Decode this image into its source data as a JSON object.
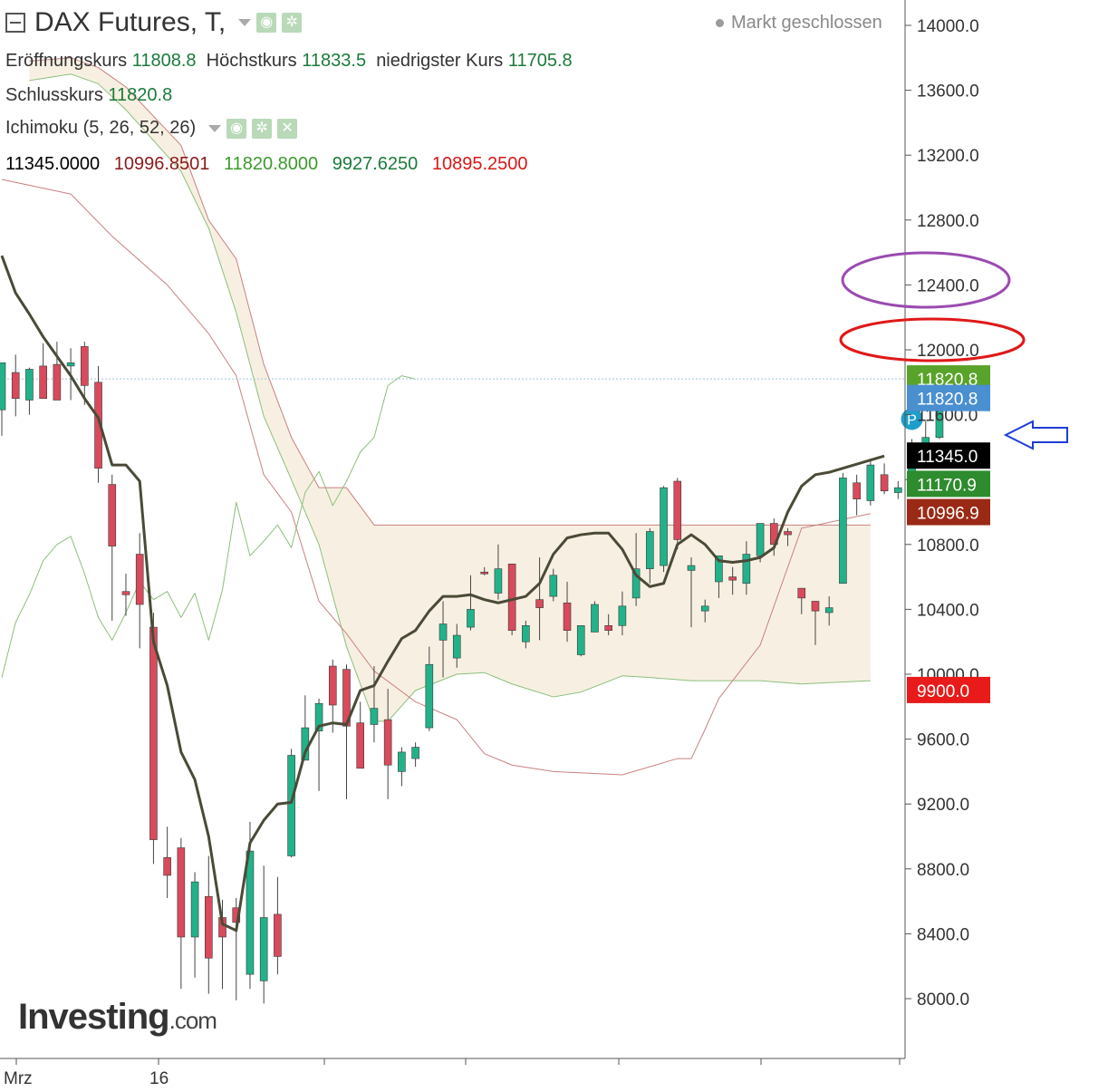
{
  "header": {
    "title": "DAX Futures, T,",
    "ohl": {
      "open_label": "Eröffnungskurs",
      "open": "11808.8",
      "high_label": "Höchstkurs",
      "high": "11833.5",
      "low_label": "niedrigster Kurs",
      "low": "11705.8"
    },
    "close_label": "Schlusskurs",
    "close": "11820.8",
    "indicator": "Ichimoku (5, 26, 52, 26)",
    "indicator_values": [
      "11345.0000",
      "10996.8501",
      "11820.8000",
      "9927.6250",
      "10895.2500"
    ],
    "indicator_colors": [
      "#000000",
      "#8b1a1a",
      "#3c9a2c",
      "#1b7b3a",
      "#d81818"
    ]
  },
  "status": "Markt geschlossen",
  "logo": {
    "main": "Investing",
    "suffix": ".com"
  },
  "chart_data": {
    "type": "candlestick",
    "x_labels": [
      "Mrz",
      "16"
    ],
    "y_ticks": [
      14000,
      13600,
      13200,
      12800,
      12400,
      12000,
      11600,
      11200,
      10800,
      10400,
      10000,
      9600,
      9200,
      8800,
      8400,
      8000
    ],
    "y_tick_labels": [
      "14000.0",
      "13600.0",
      "13200.0",
      "12800.0",
      "12400.0",
      "12000.0",
      "11600.0",
      "11200.0",
      "10800.0",
      "10400.0",
      "10000.0",
      "9600.0",
      "9200.0",
      "8800.0",
      "8400.0",
      "8000.0"
    ],
    "ylim": [
      7630,
      14170
    ],
    "candles": [
      {
        "o": 11630,
        "h": 11880,
        "l": 11470,
        "c": 11920
      },
      {
        "o": 11860,
        "h": 11970,
        "l": 11590,
        "c": 11700
      },
      {
        "o": 11690,
        "h": 11890,
        "l": 11600,
        "c": 11880
      },
      {
        "o": 11900,
        "h": 12040,
        "l": 11730,
        "c": 11700
      },
      {
        "o": 11910,
        "h": 12050,
        "l": 11740,
        "c": 11690
      },
      {
        "o": 11900,
        "h": 12010,
        "l": 11690,
        "c": 11920
      },
      {
        "o": 12020,
        "h": 12050,
        "l": 11660,
        "c": 11780
      },
      {
        "o": 11800,
        "h": 11900,
        "l": 11180,
        "c": 11270
      },
      {
        "o": 11170,
        "h": 11230,
        "l": 10330,
        "c": 10790
      },
      {
        "o": 10510,
        "h": 10620,
        "l": 10360,
        "c": 10490
      },
      {
        "o": 10740,
        "h": 10870,
        "l": 10160,
        "c": 10430
      },
      {
        "o": 10290,
        "h": 10380,
        "l": 8830,
        "c": 8980
      },
      {
        "o": 8870,
        "h": 9060,
        "l": 8620,
        "c": 8760
      },
      {
        "o": 8930,
        "h": 8990,
        "l": 8060,
        "c": 8380
      },
      {
        "o": 8380,
        "h": 8780,
        "l": 8130,
        "c": 8720
      },
      {
        "o": 8630,
        "h": 8880,
        "l": 8030,
        "c": 8250
      },
      {
        "o": 8500,
        "h": 8610,
        "l": 8060,
        "c": 8380
      },
      {
        "o": 8560,
        "h": 8620,
        "l": 7990,
        "c": 8470
      },
      {
        "o": 8150,
        "h": 9090,
        "l": 8060,
        "c": 8910
      },
      {
        "o": 8110,
        "h": 8820,
        "l": 7970,
        "c": 8500
      },
      {
        "o": 8520,
        "h": 8750,
        "l": 8150,
        "c": 8260
      },
      {
        "o": 8880,
        "h": 9540,
        "l": 8870,
        "c": 9500
      },
      {
        "o": 9470,
        "h": 9870,
        "l": 9470,
        "c": 9670
      },
      {
        "o": 9650,
        "h": 9850,
        "l": 9280,
        "c": 9820
      },
      {
        "o": 10050,
        "h": 10090,
        "l": 9640,
        "c": 9810
      },
      {
        "o": 10030,
        "h": 10060,
        "l": 9230,
        "c": 9680
      },
      {
        "o": 9700,
        "h": 9830,
        "l": 9430,
        "c": 9420
      },
      {
        "o": 9690,
        "h": 10050,
        "l": 9580,
        "c": 9790
      },
      {
        "o": 9720,
        "h": 9910,
        "l": 9230,
        "c": 9440
      },
      {
        "o": 9400,
        "h": 9550,
        "l": 9310,
        "c": 9520
      },
      {
        "o": 9480,
        "h": 9580,
        "l": 9430,
        "c": 9550
      },
      {
        "o": 9670,
        "h": 10170,
        "l": 9650,
        "c": 10060
      },
      {
        "o": 10210,
        "h": 10450,
        "l": 9980,
        "c": 10310
      },
      {
        "o": 10100,
        "h": 10310,
        "l": 10040,
        "c": 10240
      },
      {
        "o": 10290,
        "h": 10610,
        "l": 10270,
        "c": 10400
      },
      {
        "o": 10630,
        "h": 10660,
        "l": 10610,
        "c": 10620
      },
      {
        "o": 10500,
        "h": 10800,
        "l": 10460,
        "c": 10650
      },
      {
        "o": 10680,
        "h": 10660,
        "l": 10240,
        "c": 10270
      },
      {
        "o": 10200,
        "h": 10330,
        "l": 10160,
        "c": 10300
      },
      {
        "o": 10460,
        "h": 10720,
        "l": 10210,
        "c": 10410
      },
      {
        "o": 10480,
        "h": 10650,
        "l": 10450,
        "c": 10610
      },
      {
        "o": 10440,
        "h": 10570,
        "l": 10200,
        "c": 10270
      },
      {
        "o": 10120,
        "h": 10290,
        "l": 10110,
        "c": 10300
      },
      {
        "o": 10260,
        "h": 10450,
        "l": 10280,
        "c": 10430
      },
      {
        "o": 10300,
        "h": 10370,
        "l": 10240,
        "c": 10270
      },
      {
        "o": 10300,
        "h": 10510,
        "l": 10240,
        "c": 10420
      },
      {
        "o": 10470,
        "h": 10870,
        "l": 10420,
        "c": 10650
      },
      {
        "o": 10650,
        "h": 10900,
        "l": 10560,
        "c": 10880
      },
      {
        "o": 10670,
        "h": 11160,
        "l": 10630,
        "c": 11150
      },
      {
        "o": 11190,
        "h": 11210,
        "l": 10770,
        "c": 10830
      },
      {
        "o": 10640,
        "h": 10720,
        "l": 10290,
        "c": 10670
      },
      {
        "o": 10390,
        "h": 10460,
        "l": 10320,
        "c": 10420
      },
      {
        "o": 10570,
        "h": 10700,
        "l": 10470,
        "c": 10730
      },
      {
        "o": 10600,
        "h": 10660,
        "l": 10490,
        "c": 10580
      },
      {
        "o": 10560,
        "h": 10820,
        "l": 10490,
        "c": 10740
      },
      {
        "o": 10730,
        "h": 10910,
        "l": 10690,
        "c": 10930
      },
      {
        "o": 10930,
        "h": 10960,
        "l": 10730,
        "c": 10800
      },
      {
        "o": 10880,
        "h": 10900,
        "l": 10790,
        "c": 10860
      },
      {
        "o": 10530,
        "h": 10500,
        "l": 10370,
        "c": 10470
      },
      {
        "o": 10450,
        "h": 10430,
        "l": 10180,
        "c": 10390
      },
      {
        "o": 10380,
        "h": 10480,
        "l": 10300,
        "c": 10410
      },
      {
        "o": 10560,
        "h": 11240,
        "l": 10590,
        "c": 11210
      },
      {
        "o": 11180,
        "h": 11230,
        "l": 10980,
        "c": 11080
      },
      {
        "o": 11070,
        "h": 11330,
        "l": 11040,
        "c": 11290
      },
      {
        "o": 11230,
        "h": 11300,
        "l": 11110,
        "c": 11130
      },
      {
        "o": 11120,
        "h": 11190,
        "l": 11080,
        "c": 11150
      },
      {
        "o": 11220,
        "h": 11450,
        "l": 11180,
        "c": 11420
      },
      {
        "o": 11360,
        "h": 11560,
        "l": 11320,
        "c": 11460
      },
      {
        "o": 11460,
        "h": 11810,
        "l": 11450,
        "c": 11780
      },
      {
        "o": 11810,
        "h": 11830,
        "l": 11710,
        "c": 11820
      }
    ],
    "series": [
      {
        "name": "Tenkan",
        "color": "#4a4a36",
        "values": [
          [
            0,
            12580
          ],
          [
            1,
            12350
          ],
          [
            2,
            12220
          ],
          [
            3,
            12080
          ],
          [
            4,
            11960
          ],
          [
            5,
            11840
          ],
          [
            6,
            11700
          ],
          [
            7,
            11580
          ],
          [
            8,
            11290
          ],
          [
            9,
            11290
          ],
          [
            10,
            11190
          ],
          [
            11,
            10200
          ],
          [
            12,
            9930
          ],
          [
            13,
            9520
          ],
          [
            14,
            9350
          ],
          [
            15,
            9000
          ],
          [
            16,
            8460
          ],
          [
            17,
            8420
          ],
          [
            18,
            8960
          ],
          [
            19,
            9100
          ],
          [
            20,
            9200
          ],
          [
            21,
            9210
          ],
          [
            22,
            9520
          ],
          [
            23,
            9680
          ],
          [
            24,
            9700
          ],
          [
            25,
            9690
          ],
          [
            26,
            9900
          ],
          [
            27,
            9930
          ],
          [
            28,
            10080
          ],
          [
            29,
            10220
          ],
          [
            30,
            10270
          ],
          [
            31,
            10390
          ],
          [
            32,
            10480
          ],
          [
            33,
            10480
          ],
          [
            34,
            10490
          ],
          [
            35,
            10460
          ],
          [
            36,
            10440
          ],
          [
            37,
            10460
          ],
          [
            38,
            10480
          ],
          [
            39,
            10560
          ],
          [
            40,
            10740
          ],
          [
            41,
            10840
          ],
          [
            42,
            10860
          ],
          [
            43,
            10870
          ],
          [
            44,
            10870
          ],
          [
            45,
            10770
          ],
          [
            46,
            10610
          ],
          [
            47,
            10540
          ],
          [
            48,
            10560
          ],
          [
            49,
            10800
          ],
          [
            50,
            10860
          ],
          [
            51,
            10800
          ],
          [
            52,
            10700
          ],
          [
            53,
            10690
          ],
          [
            54,
            10700
          ],
          [
            55,
            10720
          ],
          [
            56,
            10780
          ],
          [
            57,
            11000
          ],
          [
            58,
            11160
          ],
          [
            59,
            11230
          ],
          [
            60,
            11245
          ],
          [
            61,
            11270
          ],
          [
            62,
            11295
          ],
          [
            63,
            11320
          ],
          [
            64,
            11345
          ]
        ]
      },
      {
        "name": "Kijun",
        "color": "#c98080",
        "values": [
          [
            0,
            13050
          ],
          [
            5,
            12960
          ],
          [
            8,
            12700
          ],
          [
            12,
            12400
          ],
          [
            15,
            12100
          ],
          [
            17,
            11840
          ],
          [
            19,
            11230
          ],
          [
            21,
            11000
          ],
          [
            23,
            10450
          ],
          [
            25,
            10250
          ],
          [
            27,
            10020
          ],
          [
            30,
            9830
          ],
          [
            33,
            9720
          ],
          [
            35,
            9510
          ],
          [
            37,
            9440
          ],
          [
            40,
            9400
          ],
          [
            45,
            9380
          ],
          [
            49,
            9480
          ],
          [
            50,
            9480
          ],
          [
            51,
            9660
          ],
          [
            52,
            9850
          ],
          [
            55,
            10180
          ],
          [
            58,
            10900
          ],
          [
            63,
            10990
          ]
        ]
      },
      {
        "name": "Chikou",
        "color": "#8cbf7c",
        "values": [
          [
            0,
            9980
          ],
          [
            1,
            10320
          ],
          [
            2,
            10490
          ],
          [
            3,
            10700
          ],
          [
            4,
            10800
          ],
          [
            5,
            10850
          ],
          [
            6,
            10620
          ],
          [
            7,
            10350
          ],
          [
            8,
            10210
          ],
          [
            9,
            10380
          ],
          [
            10,
            10570
          ],
          [
            11,
            10460
          ],
          [
            12,
            10510
          ],
          [
            13,
            10350
          ],
          [
            14,
            10500
          ],
          [
            15,
            10210
          ],
          [
            16,
            10520
          ],
          [
            17,
            11060
          ],
          [
            18,
            10730
          ],
          [
            19,
            10820
          ],
          [
            20,
            10920
          ],
          [
            21,
            10780
          ],
          [
            22,
            11120
          ],
          [
            23,
            11250
          ],
          [
            24,
            11040
          ],
          [
            25,
            11190
          ],
          [
            26,
            11370
          ],
          [
            27,
            11460
          ],
          [
            28,
            11780
          ],
          [
            29,
            11840
          ],
          [
            30,
            11820
          ]
        ]
      },
      {
        "name": "Kumo upper",
        "color": "#c98080",
        "values": [
          [
            2,
            13780
          ],
          [
            5,
            13800
          ],
          [
            7,
            13740
          ],
          [
            9,
            13620
          ],
          [
            13,
            13260
          ],
          [
            15,
            12800
          ],
          [
            17,
            12560
          ],
          [
            19,
            11910
          ],
          [
            21,
            11460
          ],
          [
            23,
            11150
          ],
          [
            25,
            11150
          ],
          [
            27,
            10920
          ],
          [
            30,
            10920
          ],
          [
            35,
            10920
          ],
          [
            40,
            10920
          ],
          [
            45,
            10920
          ],
          [
            50,
            10920
          ],
          [
            55,
            10920
          ],
          [
            60,
            10920
          ],
          [
            63,
            10920
          ]
        ]
      },
      {
        "name": "Kumo lower",
        "color": "#8cbf7c",
        "values": [
          [
            2,
            13660
          ],
          [
            5,
            13700
          ],
          [
            7,
            13640
          ],
          [
            9,
            13480
          ],
          [
            13,
            13100
          ],
          [
            15,
            12750
          ],
          [
            17,
            12230
          ],
          [
            19,
            11590
          ],
          [
            21,
            11200
          ],
          [
            23,
            10800
          ],
          [
            25,
            10170
          ],
          [
            27,
            9710
          ],
          [
            28,
            9710
          ],
          [
            30,
            9900
          ],
          [
            33,
            10000
          ],
          [
            35,
            10010
          ],
          [
            37,
            9940
          ],
          [
            40,
            9860
          ],
          [
            42,
            9890
          ],
          [
            45,
            9990
          ],
          [
            47,
            9980
          ],
          [
            50,
            9960
          ],
          [
            55,
            9960
          ],
          [
            58,
            9940
          ],
          [
            63,
            9960
          ]
        ]
      }
    ],
    "price_labels": [
      {
        "text": "11820.8",
        "color": "#5aa32a"
      },
      {
        "text": "11820.8",
        "color": "#4a8fd0"
      },
      {
        "text": "11345.0",
        "color": "#000000"
      },
      {
        "text": "11170.9",
        "color": "#2e8b2e"
      },
      {
        "text": "10996.9",
        "color": "#9a2a16"
      },
      {
        "text": "9900.0",
        "color": "#e81a1a"
      }
    ],
    "price_label_values": [
      11820.8,
      11700,
      11345,
      11170.9,
      10996.9,
      9900
    ],
    "hline": 11820.8,
    "marker": {
      "text": "P",
      "color": "#1e9ec9"
    },
    "colors": {
      "up": "#22b28a",
      "down": "#d84a5c",
      "wick": "#444444",
      "cloud": "#f7f0e2"
    }
  }
}
